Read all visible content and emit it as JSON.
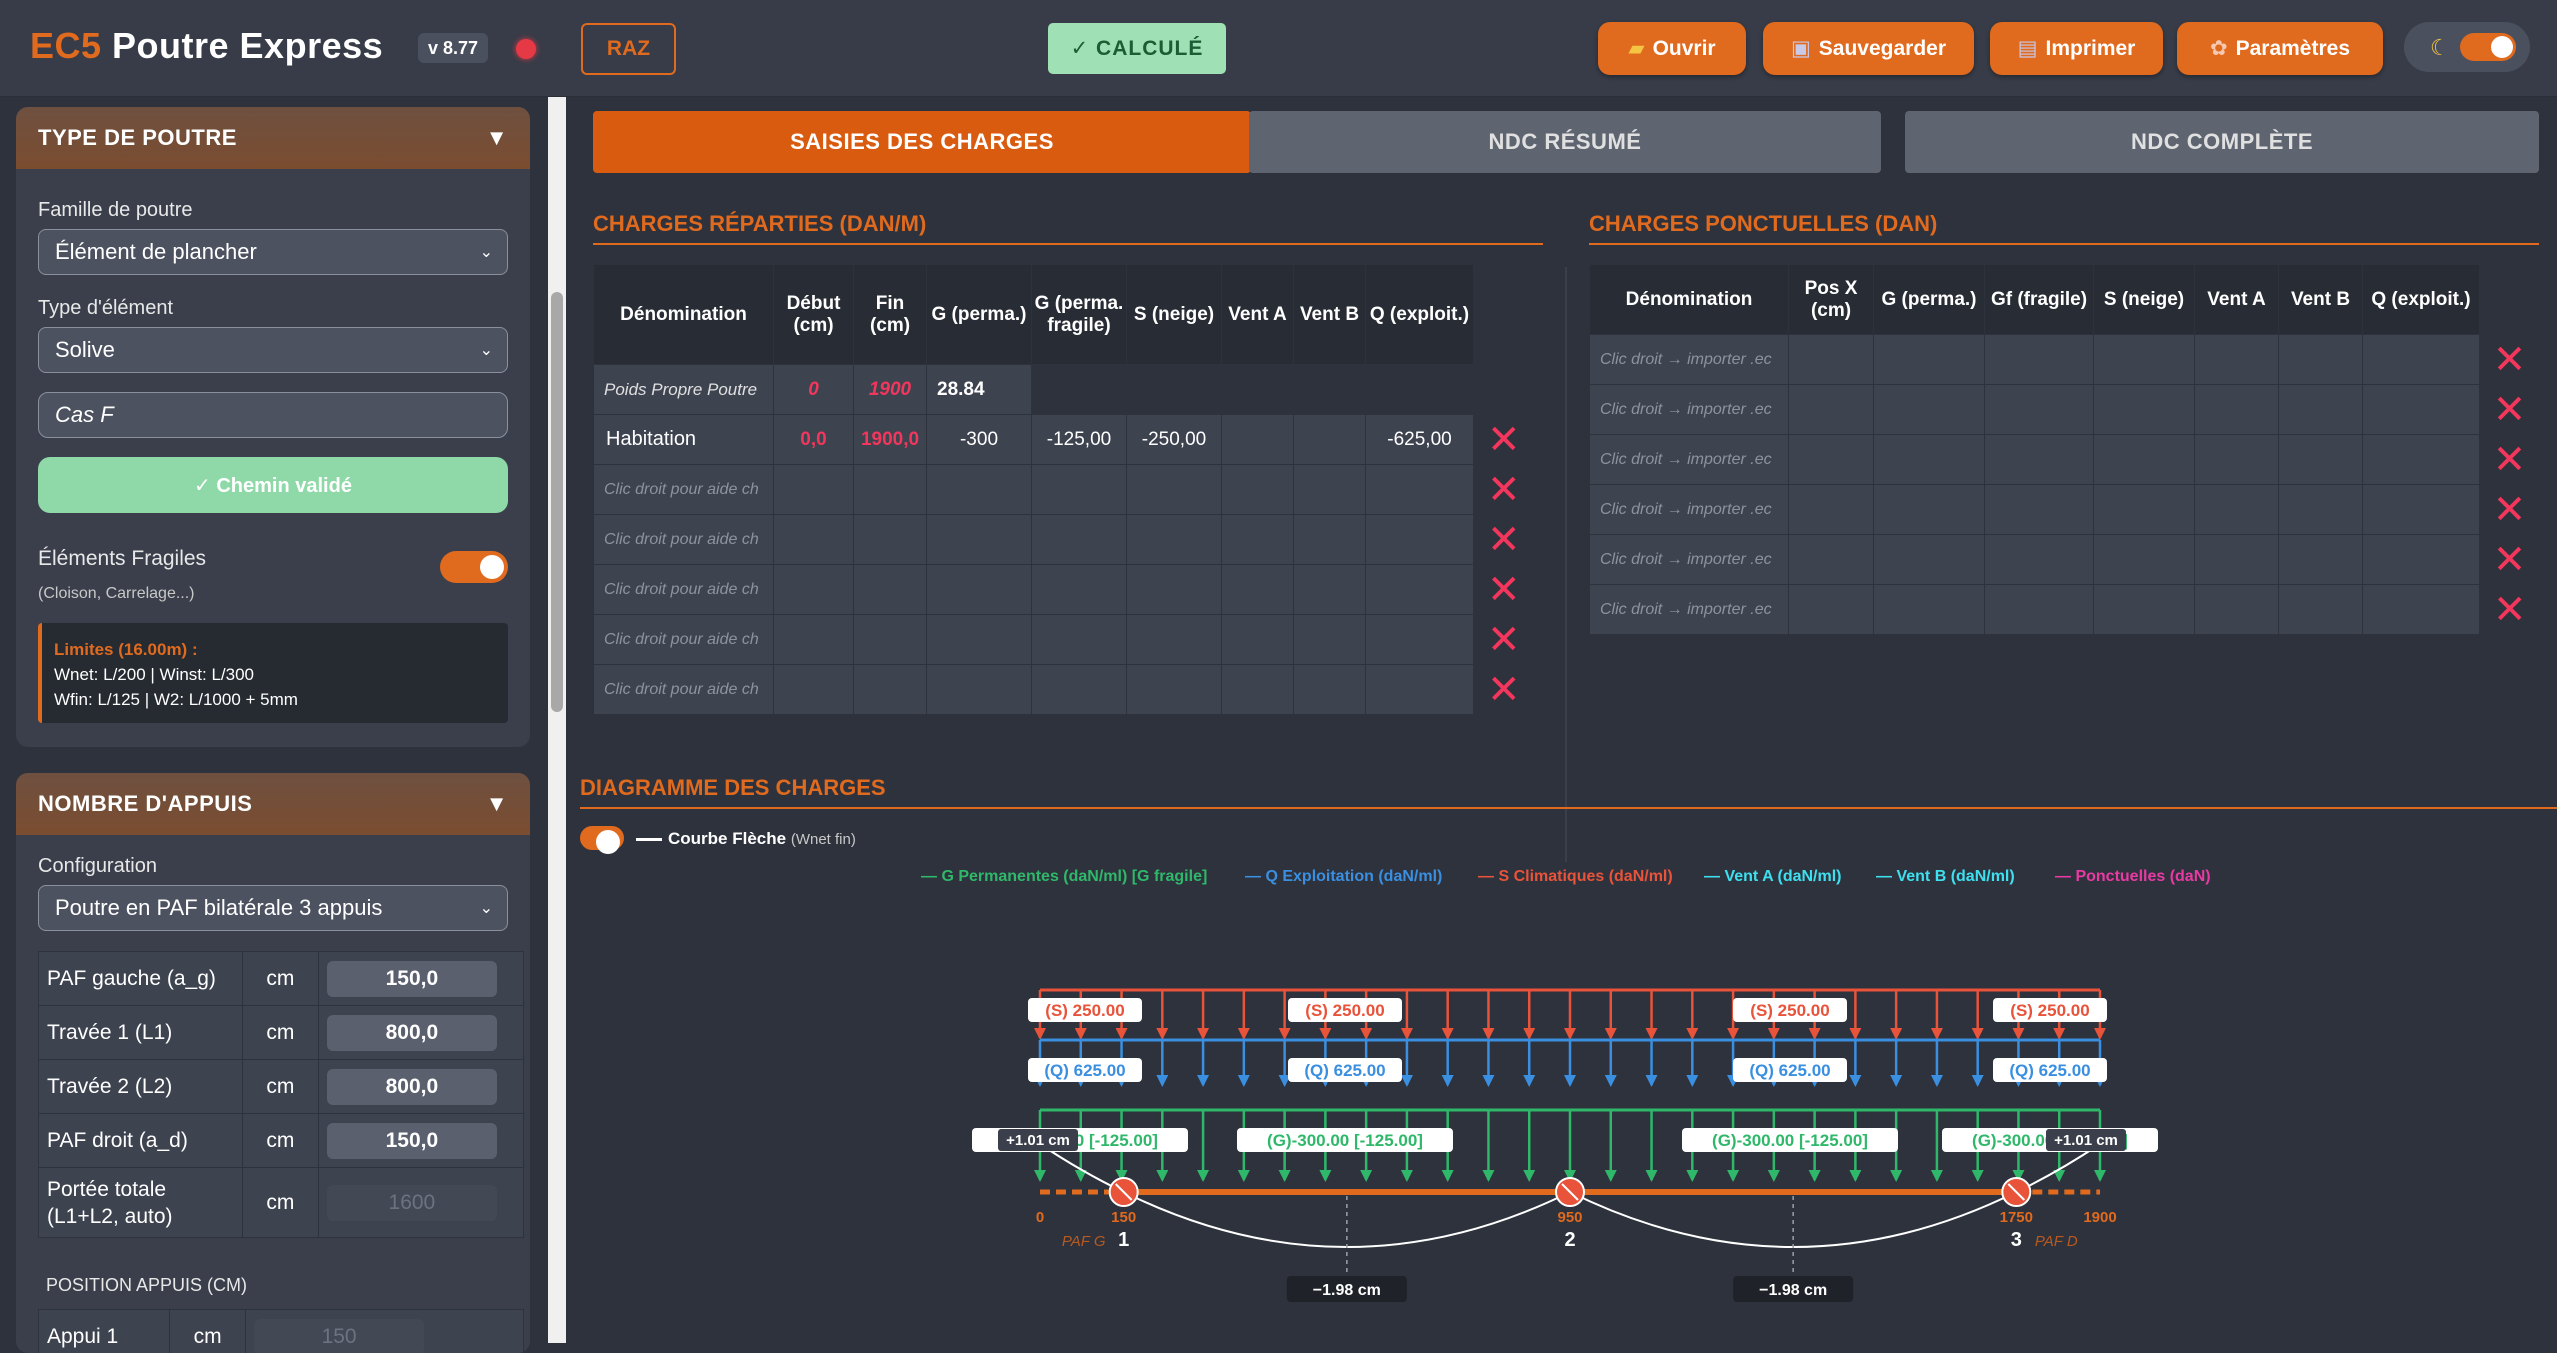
{
  "app": {
    "brand_a": "EC5",
    "brand_b": " Poutre Express",
    "version": "v 8.77",
    "raz": "RAZ",
    "calc": "✓ CALCULÉ"
  },
  "toolbar": {
    "open": "Ouvrir",
    "save": "Sauvegarder",
    "print": "Imprimer",
    "settings": "Paramètres"
  },
  "sidebar": {
    "type": {
      "title": "TYPE DE POUTRE",
      "famille_label": "Famille de poutre",
      "famille_value": "Élément de plancher",
      "type_label": "Type d'élément",
      "type_value": "Solive",
      "cas_value": "Cas F",
      "chemin": "✓ Chemin validé",
      "fragiles_label": "Éléments Fragiles",
      "fragiles_sub": "(Cloison, Carrelage...)",
      "lim_title": "Limites (16.00m) :",
      "lim_l1": "Wnet: L/200 | Winst: L/300",
      "lim_l2": "Wfin: L/125 | W2: L/1000 + 5mm"
    },
    "appuis": {
      "title": "NOMBRE D'APPUIS",
      "config_label": "Configuration",
      "config_value": "Poutre en PAF bilatérale 3 appuis",
      "rows": [
        {
          "label": "PAF gauche (a_g)",
          "unit": "cm",
          "value": "150,0"
        },
        {
          "label": "Travée 1 (L1)",
          "unit": "cm",
          "value": "800,0"
        },
        {
          "label": "Travée 2 (L2)",
          "unit": "cm",
          "value": "800,0"
        },
        {
          "label": "PAF droit (a_d)",
          "unit": "cm",
          "value": "150,0"
        }
      ],
      "total_label_1": "Portée totale",
      "total_label_2": "(L1+L2, auto)",
      "total_unit": "cm",
      "total_value": "1600",
      "pos_title": "POSITION APPUIS (CM)",
      "appui1_label": "Appui 1",
      "appui1_unit": "cm",
      "appui1_value": "150"
    }
  },
  "tabs": [
    "SAISIES DES CHARGES",
    "NDC RÉSUMÉ",
    "NDC COMPLÈTE"
  ],
  "reparties": {
    "title": "CHARGES RÉPARTIES (DAN/M)",
    "headers": [
      "Dénomination",
      "Début (cm)",
      "Fin (cm)",
      "G (perma.)",
      "G (perma. fragile)",
      "S (neige)",
      "Vent A",
      "Vent B",
      "Q (exploit.)"
    ],
    "pp": {
      "name": "Poids Propre Poutre",
      "debut": "0",
      "fin": "1900",
      "g": "28.84"
    },
    "row1": [
      "Habitation",
      "0,0",
      "1900,0",
      "-300",
      "-125,00",
      "-250,00",
      "",
      "",
      "-625,00"
    ],
    "placeholder": "Clic droit pour aide ch"
  },
  "ponctuelles": {
    "title": "CHARGES PONCTUELLES (DAN)",
    "headers": [
      "Dénomination",
      "Pos X (cm)",
      "G (perma.)",
      "Gf (fragile)",
      "S (neige)",
      "Vent A",
      "Vent B",
      "Q (exploit.)"
    ],
    "placeholder": "Clic droit → importer .ec"
  },
  "diagram": {
    "title": "DIAGRAMME DES CHARGES",
    "courbe": "Courbe Flèche",
    "courbe_sub": "(Wnet fin)",
    "legend": [
      {
        "text": "G Permanentes (daN/ml) [G fragile]",
        "color": "#2fb86a"
      },
      {
        "text": "Q Exploitation (daN/ml)",
        "color": "#3a8fe0"
      },
      {
        "text": "S Climatiques (daN/ml)",
        "color": "#e8533a"
      },
      {
        "text": "Vent A (daN/ml)",
        "color": "#3ee0ef"
      },
      {
        "text": "Vent B (daN/ml)",
        "color": "#3ee0ef"
      },
      {
        "text": "Ponctuelles (daN)",
        "color": "#e83aa2"
      }
    ],
    "s_label": "(S) 250.00",
    "q_label": "(Q) 625.00",
    "g_label": "(G)-300.00 [-125.00]",
    "defl_end": "+1.01 cm",
    "defl_mid": "−1.98 cm",
    "ticks": [
      "0",
      "150",
      "950",
      "1750",
      "1900"
    ],
    "supports": [
      "1",
      "2",
      "3"
    ],
    "paf_g": "PAF G",
    "paf_d": "PAF D"
  }
}
